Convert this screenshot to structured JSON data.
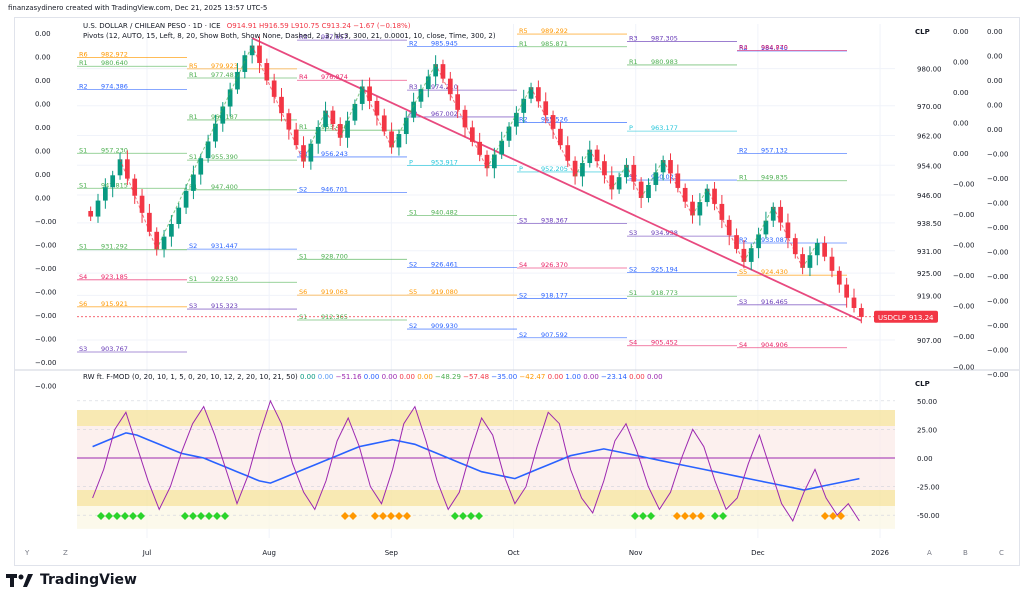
{
  "meta": {
    "watermark": "finanzasydinero created with TradingView.com, Dec 21, 2025 13:57 UTC-5"
  },
  "header": {
    "symbol_line": "U.S. DOLLAR / CHILEAN PESO · 1D · ICE",
    "ohlc": "O914.91 H916.59 L910.75 C913.24 −1.67 (−0.18%)",
    "pivots_line": "Pivots (12, AUTO, 15, Left, 8, 20, Show Both, Show None, Dashed, 2, 3, hlc3, 300, 21, 0.0001, 10, close, Time, 300, 2)",
    "currency": "CLP",
    "price_badge_label": "USDCLP",
    "price_badge_value": "913.24"
  },
  "osc": {
    "name": "RW ft. F-MOD",
    "params": "(0, 20, 10, 1, 5, 0, 20, 10, 12, 2, 20, 10, 21, 50)",
    "values": [
      {
        "text": "0.00",
        "color": "#089981"
      },
      {
        "text": "0.00",
        "color": "#5b9cf6"
      },
      {
        "text": "−51.16",
        "color": "#9c27b0"
      },
      {
        "text": "0.00",
        "color": "#2962ff"
      },
      {
        "text": "0.00",
        "color": "#9c27b0"
      },
      {
        "text": "0.00",
        "color": "#f23645"
      },
      {
        "text": "0.00",
        "color": "#ff9800"
      },
      {
        "text": "−48.29",
        "color": "#4caf50"
      },
      {
        "text": "−57.48",
        "color": "#f23645"
      },
      {
        "text": "−35.00",
        "color": "#2962ff"
      },
      {
        "text": "−42.47",
        "color": "#ff9800"
      },
      {
        "text": "0.00",
        "color": "#f23645"
      },
      {
        "text": "1.00",
        "color": "#2962ff"
      },
      {
        "text": "0.00",
        "color": "#9c27b0"
      },
      {
        "text": "−23.14",
        "color": "#2962ff"
      },
      {
        "text": "0.00",
        "color": "#f23645"
      },
      {
        "text": "0.00",
        "color": "#9c27b0"
      }
    ],
    "currency": "CLP"
  },
  "left_scale_labels": [
    "0.00",
    "0.00",
    "0.00",
    "0.00",
    "0.00",
    "0.00",
    "0.00",
    "0.00",
    "−0.00",
    "−0.00",
    "−0.00",
    "−0.00",
    "−0.00",
    "−0.00",
    "−0.00",
    "−0.00"
  ],
  "right_scale_col1": [
    "0.00",
    "0.00",
    "0.00",
    "0.00",
    "0.00",
    "−0.00",
    "−0.00",
    "−0.00",
    "−0.00",
    "−0.00",
    "−0.00",
    "−0.00"
  ],
  "right_scale_col2": [
    "0.00",
    "0.00",
    "0.00",
    "0.00",
    "0.00",
    "−0.00",
    "−0.00",
    "−0.00",
    "−0.00",
    "−0.00",
    "−0.00",
    "−0.00",
    "−0.00",
    "−0.00",
    "−0.00"
  ],
  "x_nav": {
    "left": [
      "Y",
      "Z"
    ],
    "right": [
      "A",
      "B",
      "C"
    ]
  },
  "brand": {
    "name": "TradingView"
  },
  "chart_data": [
    {
      "type": "candlestick",
      "title": "U.S. DOLLAR / CHILEAN PESO · 1D · ICE",
      "y_axis": {
        "ticks": [
          980.0,
          970.0,
          962.0,
          954.0,
          946.0,
          938.5,
          931.0,
          925.0,
          919.0,
          913.24,
          907.0
        ],
        "ylim": [
          900,
          992
        ]
      },
      "x_axis": {
        "ticks": [
          "Jul",
          "Aug",
          "Sep",
          "Oct",
          "Nov",
          "Dec",
          "2026"
        ]
      },
      "grid": true,
      "close_series": [
        940.2,
        944.5,
        948.1,
        951.3,
        955.6,
        950.4,
        945.8,
        941.2,
        936.1,
        931.4,
        934.8,
        938.2,
        942.6,
        947.1,
        951.5,
        955.9,
        960.4,
        965.2,
        969.8,
        974.4,
        979.1,
        983.6,
        986.2,
        981.5,
        976.8,
        972.4,
        968.0,
        963.6,
        959.4,
        955.0,
        959.8,
        964.3,
        968.7,
        965.1,
        961.4,
        966.0,
        970.5,
        975.2,
        971.3,
        967.4,
        963.1,
        958.8,
        962.4,
        966.8,
        971.1,
        974.5,
        977.9,
        981.2,
        977.3,
        973.1,
        968.9,
        964.2,
        960.3,
        956.8,
        953.2,
        956.9,
        960.6,
        964.4,
        968.1,
        971.9,
        975.0,
        971.2,
        967.5,
        963.8,
        959.4,
        955.2,
        951.0,
        954.6,
        958.2,
        955.1,
        951.3,
        947.5,
        950.8,
        954.1,
        949.6,
        945.2,
        948.7,
        952.1,
        955.4,
        951.8,
        947.9,
        944.2,
        940.5,
        944.1,
        947.7,
        943.6,
        939.3,
        935.2,
        931.5,
        928.0,
        931.7,
        935.4,
        939.1,
        942.8,
        938.6,
        934.4,
        930.1,
        926.4,
        929.8,
        933.1,
        929.4,
        925.6,
        921.9,
        918.4,
        915.6,
        913.2
      ],
      "levels": [
        {
          "label": "R6",
          "value": 982.972,
          "color": "#ff9800"
        },
        {
          "label": "R5",
          "value": 979.923,
          "color": "#ff9800"
        },
        {
          "label": "R4",
          "value": 976.874,
          "color": "#e91e63"
        },
        {
          "label": "R3",
          "value": 974.21,
          "color": "#673ab7"
        },
        {
          "label": "R1",
          "value": 985.871,
          "color": "#4caf50"
        },
        {
          "label": "R1",
          "value": 980.983,
          "color": "#4caf50"
        },
        {
          "label": "R2",
          "value": 984.745,
          "color": "#2962ff"
        },
        {
          "label": "R1",
          "value": 980.64,
          "color": "#4caf50"
        },
        {
          "label": "R1",
          "value": 977.481,
          "color": "#4caf50"
        },
        {
          "label": "R3",
          "value": 987.657,
          "color": "#673ab7"
        },
        {
          "label": "R2",
          "value": 985.945,
          "color": "#2962ff"
        },
        {
          "label": "R5",
          "value": 989.292,
          "color": "#ff9800"
        },
        {
          "label": "R3",
          "value": 987.305,
          "color": "#673ab7"
        },
        {
          "label": "R4",
          "value": 984.87,
          "color": "#e91e63"
        },
        {
          "label": "R2",
          "value": 974.386,
          "color": "#2962ff"
        },
        {
          "label": "R1",
          "value": 966.187,
          "color": "#4caf50"
        },
        {
          "label": "R1",
          "value": 963.44,
          "color": "#4caf50"
        },
        {
          "label": "R3",
          "value": 967.002,
          "color": "#673ab7"
        },
        {
          "label": "R2",
          "value": 965.526,
          "color": "#2962ff"
        },
        {
          "label": "P",
          "value": 963.177,
          "color": "#26c6da"
        },
        {
          "label": "R2",
          "value": 957.132,
          "color": "#2962ff"
        },
        {
          "label": "S1",
          "value": 957.23,
          "color": "#4caf50"
        },
        {
          "label": "S1",
          "value": 955.39,
          "color": "#4caf50"
        },
        {
          "label": "R2",
          "value": 956.243,
          "color": "#2962ff"
        },
        {
          "label": "P",
          "value": 953.917,
          "color": "#26c6da"
        },
        {
          "label": "P",
          "value": 952.205,
          "color": "#26c6da"
        },
        {
          "label": "S2",
          "value": 950.023,
          "color": "#2962ff"
        },
        {
          "label": "R1",
          "value": 949.835,
          "color": "#4caf50"
        },
        {
          "label": "S1",
          "value": 947.815,
          "color": "#4caf50"
        },
        {
          "label": "R1",
          "value": 947.4,
          "color": "#4caf50"
        },
        {
          "label": "S2",
          "value": 946.701,
          "color": "#2962ff"
        },
        {
          "label": "S1",
          "value": 940.482,
          "color": "#4caf50"
        },
        {
          "label": "S3",
          "value": 938.367,
          "color": "#673ab7"
        },
        {
          "label": "S3",
          "value": 934.938,
          "color": "#673ab7"
        },
        {
          "label": "R2",
          "value": 933.087,
          "color": "#2962ff"
        },
        {
          "label": "S1",
          "value": 931.292,
          "color": "#4caf50"
        },
        {
          "label": "S2",
          "value": 931.447,
          "color": "#2962ff"
        },
        {
          "label": "S1",
          "value": 928.7,
          "color": "#4caf50"
        },
        {
          "label": "S2",
          "value": 926.461,
          "color": "#2962ff"
        },
        {
          "label": "S4",
          "value": 926.37,
          "color": "#e91e63"
        },
        {
          "label": "S2",
          "value": 925.194,
          "color": "#2962ff"
        },
        {
          "label": "S5",
          "value": 924.43,
          "color": "#ff9800"
        },
        {
          "label": "S4",
          "value": 923.185,
          "color": "#e91e63"
        },
        {
          "label": "S1",
          "value": 922.53,
          "color": "#4caf50"
        },
        {
          "label": "S6",
          "value": 919.063,
          "color": "#ff9800"
        },
        {
          "label": "S5",
          "value": 919.08,
          "color": "#ff9800"
        },
        {
          "label": "S2",
          "value": 918.177,
          "color": "#2962ff"
        },
        {
          "label": "S1",
          "value": 918.773,
          "color": "#4caf50"
        },
        {
          "label": "S3",
          "value": 916.465,
          "color": "#673ab7"
        },
        {
          "label": "S6",
          "value": 915.921,
          "color": "#ff9800"
        },
        {
          "label": "S3",
          "value": 915.323,
          "color": "#673ab7"
        },
        {
          "label": "S1",
          "value": 912.365,
          "color": "#4caf50"
        },
        {
          "label": "S2",
          "value": 909.93,
          "color": "#2962ff"
        },
        {
          "label": "S2",
          "value": 907.592,
          "color": "#2962ff"
        },
        {
          "label": "S4",
          "value": 905.452,
          "color": "#e91e63"
        },
        {
          "label": "S4",
          "value": 904.906,
          "color": "#e91e63"
        },
        {
          "label": "S3",
          "value": 903.767,
          "color": "#673ab7"
        }
      ],
      "colors": {
        "up": "#089981",
        "down": "#f23645",
        "trend": "#e84a7f"
      }
    },
    {
      "type": "line",
      "title": "RW ft. F-MOD",
      "y_axis": {
        "ticks": [
          50.0,
          25.0,
          0.0,
          -25.0,
          -50.0
        ],
        "ylim": [
          -70,
          70
        ]
      },
      "series": [
        {
          "values": [
            10,
            14,
            18,
            22,
            20,
            16,
            12,
            8,
            4,
            2,
            0,
            -4,
            -8,
            -12,
            -16,
            -20,
            -22,
            -18,
            -14,
            -10,
            -6,
            -2,
            2,
            6,
            10,
            12,
            14,
            16,
            14,
            12,
            8,
            4,
            0,
            -4,
            -8,
            -12,
            -14,
            -16,
            -18,
            -14,
            -10,
            -6,
            -2,
            2,
            4,
            6,
            8,
            6,
            4,
            2,
            0,
            -2,
            -4,
            -6,
            -8,
            -10,
            -12,
            -14,
            -16,
            -18,
            -20,
            -22,
            -24,
            -26,
            -28,
            -26,
            -24,
            -22,
            -20,
            -18
          ]
        },
        {
          "values": [
            -35,
            -10,
            25,
            40,
            10,
            -20,
            -45,
            -25,
            5,
            30,
            45,
            20,
            -10,
            -40,
            -15,
            20,
            50,
            30,
            -5,
            -30,
            -45,
            -20,
            15,
            35,
            10,
            -25,
            -40,
            -10,
            30,
            45,
            15,
            -20,
            -45,
            -30,
            5,
            35,
            20,
            -15,
            -40,
            -25,
            10,
            40,
            30,
            -10,
            -35,
            -48,
            -20,
            15,
            30,
            5,
            -25,
            -45,
            -30,
            0,
            25,
            10,
            -20,
            -45,
            -35,
            -5,
            20,
            -10,
            -40,
            -55,
            -30,
            -10,
            -35,
            -50,
            -40,
            -55
          ]
        }
      ],
      "levels": [
        40,
        30,
        -25,
        -35
      ]
    }
  ]
}
